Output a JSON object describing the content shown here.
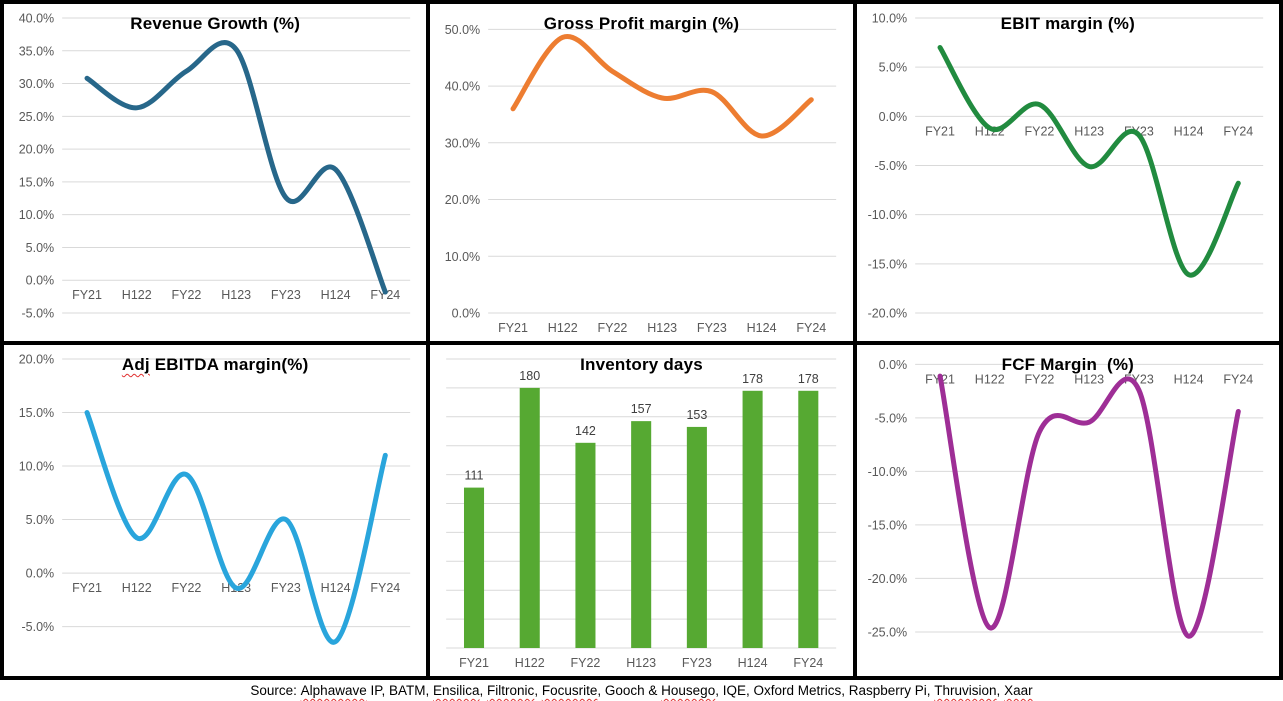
{
  "colors": {
    "grid_line": "#D9D9D9",
    "tick_text": "#595959",
    "title_text": "#000000",
    "bar_value_label": "#3F3F3F",
    "squiggle": "#E03030",
    "frame": "#000000",
    "background": "#FFFFFF"
  },
  "source_line": {
    "segments": [
      {
        "text": "Source: ",
        "misspelled": false
      },
      {
        "text": "Alphawave",
        "misspelled": true
      },
      {
        "text": " IP, BATM, ",
        "misspelled": false
      },
      {
        "text": "Ensilica",
        "misspelled": true
      },
      {
        "text": ", ",
        "misspelled": false
      },
      {
        "text": "Filtronic",
        "misspelled": true
      },
      {
        "text": ", ",
        "misspelled": false
      },
      {
        "text": "Focusrite",
        "misspelled": true
      },
      {
        "text": ", Gooch & ",
        "misspelled": false
      },
      {
        "text": "Housego",
        "misspelled": true
      },
      {
        "text": ", IQE, Oxford Metrics, Raspberry Pi, ",
        "misspelled": false
      },
      {
        "text": "Thruvision",
        "misspelled": true
      },
      {
        "text": ", ",
        "misspelled": false
      },
      {
        "text": "Xaar",
        "misspelled": true
      }
    ]
  },
  "chart_data": [
    {
      "type": "line",
      "title": "Revenue Growth (%)",
      "title_parts": [
        {
          "text": "Revenue Growth (%)",
          "misspelled": false
        }
      ],
      "color": "#27678A",
      "categories": [
        "FY21",
        "H122",
        "FY22",
        "H123",
        "FY23",
        "H124",
        "FY24"
      ],
      "values": [
        30.8,
        26.3,
        31.9,
        35.2,
        12.6,
        16.9,
        -1.8
      ],
      "ylim": [
        -5,
        40
      ],
      "yticks": [
        40,
        35,
        30,
        25,
        20,
        15,
        10,
        5,
        0,
        -5
      ],
      "ytick_format": "pct1",
      "show_ytick_labels": true,
      "data_labels": false,
      "grid": true,
      "legend": "none"
    },
    {
      "type": "line",
      "title": "Gross Profit margin (%)",
      "title_parts": [
        {
          "text": "Gross Profit margin (%)",
          "misspelled": false
        }
      ],
      "color": "#ED7D31",
      "categories": [
        "FY21",
        "H122",
        "FY22",
        "H123",
        "FY23",
        "H124",
        "FY24"
      ],
      "values": [
        36.0,
        48.6,
        42.6,
        37.9,
        39.0,
        31.2,
        37.6
      ],
      "ylim": [
        0,
        52
      ],
      "yticks": [
        50,
        40,
        30,
        20,
        10,
        0
      ],
      "ytick_format": "pct1",
      "show_ytick_labels": true,
      "data_labels": false,
      "grid": true,
      "legend": "none"
    },
    {
      "type": "line",
      "title": "EBIT margin (%)",
      "title_parts": [
        {
          "text": "EBIT margin (%)",
          "misspelled": false
        }
      ],
      "color": "#218B3F",
      "categories": [
        "FY21",
        "H122",
        "FY22",
        "H123",
        "FY23",
        "H124",
        "FY24"
      ],
      "values": [
        7.0,
        -1.2,
        1.2,
        -5.1,
        -1.9,
        -16.1,
        -6.8
      ],
      "ylim": [
        -20,
        10
      ],
      "yticks": [
        10,
        5,
        0,
        -5,
        -10,
        -15,
        -20
      ],
      "ytick_format": "pct1",
      "show_ytick_labels": true,
      "data_labels": false,
      "grid": true,
      "legend": "none"
    },
    {
      "type": "line",
      "title": "Adj EBITDA margin(%)",
      "title_parts": [
        {
          "text": "Adj",
          "misspelled": true
        },
        {
          "text": " EBITDA margin(%)",
          "misspelled": false
        }
      ],
      "color": "#29A5DC",
      "categories": [
        "FY21",
        "H122",
        "FY22",
        "H123",
        "FY23",
        "H124",
        "FY24"
      ],
      "values": [
        15.0,
        3.3,
        9.2,
        -1.4,
        5.0,
        -6.4,
        11.0
      ],
      "ylim": [
        -7,
        20
      ],
      "yticks": [
        20,
        15,
        10,
        5,
        0,
        -5
      ],
      "ytick_format": "pct1",
      "show_ytick_labels": true,
      "data_labels": false,
      "grid": true,
      "legend": "none"
    },
    {
      "type": "bar",
      "title": "Inventory days",
      "title_parts": [
        {
          "text": "Inventory days",
          "misspelled": false
        }
      ],
      "color": "#56A932",
      "categories": [
        "FY21",
        "H122",
        "FY22",
        "H123",
        "FY23",
        "H124",
        "FY24"
      ],
      "values": [
        111,
        180,
        142,
        157,
        153,
        178,
        178
      ],
      "ylim": [
        0,
        200
      ],
      "yticks": [
        200,
        180,
        160,
        140,
        120,
        100,
        80,
        60,
        40,
        20,
        0
      ],
      "ytick_format": "none",
      "show_ytick_labels": false,
      "data_labels": true,
      "grid": true,
      "legend": "none"
    },
    {
      "type": "line",
      "title": "FCF Margin  (%)",
      "title_parts": [
        {
          "text": "FCF Margin  (%)",
          "misspelled": false
        }
      ],
      "color": "#9E2E96",
      "categories": [
        "FY21",
        "H122",
        "FY22",
        "H123",
        "FY23",
        "H124",
        "FY24"
      ],
      "values": [
        -1.1,
        -24.6,
        -6.3,
        -5.4,
        -2.4,
        -25.4,
        -4.4
      ],
      "ylim": [
        -26.5,
        0.5
      ],
      "yticks": [
        0,
        -5,
        -10,
        -15,
        -20,
        -25
      ],
      "ytick_format": "pct1",
      "show_ytick_labels": true,
      "data_labels": false,
      "grid": true,
      "legend": "none"
    }
  ]
}
